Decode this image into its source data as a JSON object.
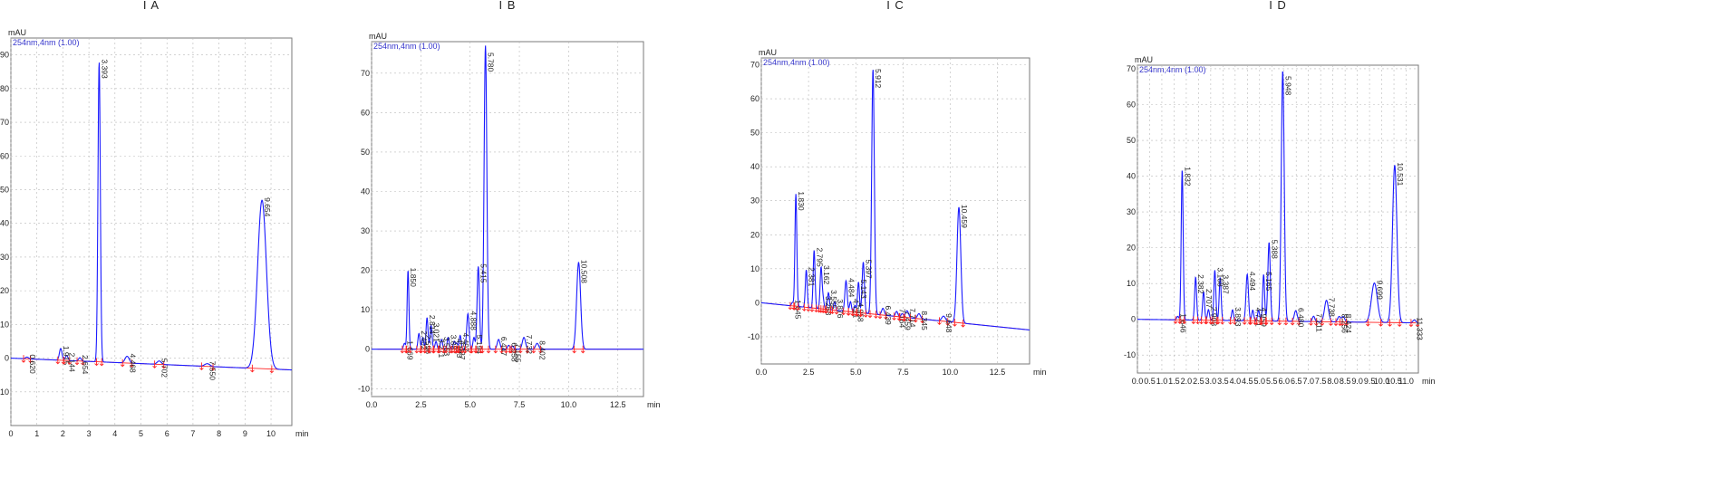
{
  "chart_data": [
    {
      "type": "line",
      "title": "I A",
      "ylabel": "mAU",
      "xlabel": "min",
      "legend": "254nm,4nm (1.00)",
      "xlim": [
        0,
        10.8
      ],
      "ylim": [
        -20,
        95
      ],
      "xticks": [
        0,
        1,
        2,
        3,
        4,
        5,
        6,
        7,
        8,
        9,
        10
      ],
      "yticks": [
        -10,
        0,
        10,
        20,
        30,
        40,
        50,
        60,
        70,
        80,
        90
      ],
      "baseline": {
        "start": 0,
        "end": -3.5
      },
      "peaks": [
        {
          "rt": 0.62,
          "height": 0.5,
          "width": 0.06,
          "label": "0.620"
        },
        {
          "rt": 1.915,
          "height": 3.5,
          "width": 0.05,
          "label": "1.915"
        },
        {
          "rt": 2.144,
          "height": 1.5,
          "width": 0.05,
          "label": "2.144"
        },
        {
          "rt": 2.654,
          "height": 1,
          "width": 0.05,
          "label": "2.654"
        },
        {
          "rt": 3.393,
          "height": 89,
          "width": 0.045,
          "label": "3.393"
        },
        {
          "rt": 4.468,
          "height": 2,
          "width": 0.08,
          "label": "4.468"
        },
        {
          "rt": 5.702,
          "height": 1,
          "width": 0.08,
          "label": "5.702"
        },
        {
          "rt": 7.55,
          "height": 0.8,
          "width": 0.1,
          "label": "7.550"
        },
        {
          "rt": 9.654,
          "height": 50,
          "width": 0.17,
          "label": "9.654"
        }
      ]
    },
    {
      "type": "line",
      "title": "I B",
      "ylabel": "mAU",
      "xlabel": "min",
      "legend": "254nm,4nm (1.00)",
      "xlim": [
        0,
        13.8
      ],
      "ylim": [
        -12,
        78
      ],
      "xticks": [
        0,
        2.5,
        5,
        7.5,
        10,
        12.5
      ],
      "xticklabels": [
        "0.0",
        "2.5",
        "5.0",
        "7.5",
        "10.0",
        "12.5"
      ],
      "yticks": [
        -10,
        0,
        10,
        20,
        30,
        40,
        50,
        60,
        70
      ],
      "baseline": {
        "start": 0,
        "end": 0
      },
      "peaks": [
        {
          "rt": 1.669,
          "height": 1.5,
          "width": 0.05,
          "label": "1.669"
        },
        {
          "rt": 1.85,
          "height": 20,
          "width": 0.045,
          "label": "1.850"
        },
        {
          "rt": 2.402,
          "height": 4,
          "width": 0.05,
          "label": "2.402"
        },
        {
          "rt": 2.596,
          "height": 3,
          "width": 0.05,
          "label": "2.596"
        },
        {
          "rt": 2.814,
          "height": 8,
          "width": 0.05,
          "label": "2.814"
        },
        {
          "rt": 3.021,
          "height": 6,
          "width": 0.05,
          "label": "3.021"
        },
        {
          "rt": 3.271,
          "height": 2,
          "width": 0.05,
          "label": "3.271"
        },
        {
          "rt": 3.553,
          "height": 2.5,
          "width": 0.05,
          "label": "3.553"
        },
        {
          "rt": 3.887,
          "height": 3,
          "width": 0.05,
          "label": "3.887"
        },
        {
          "rt": 4.193,
          "height": 2,
          "width": 0.05,
          "label": "4.193"
        },
        {
          "rt": 4.327,
          "height": 1.5,
          "width": 0.05,
          "label": "4.327"
        },
        {
          "rt": 4.497,
          "height": 3.5,
          "width": 0.05,
          "label": "4.497"
        },
        {
          "rt": 4.888,
          "height": 9,
          "width": 0.06,
          "label": "4.888"
        },
        {
          "rt": 5.194,
          "height": 3,
          "width": 0.05,
          "label": "5.194"
        },
        {
          "rt": 5.415,
          "height": 21,
          "width": 0.06,
          "label": "5.415"
        },
        {
          "rt": 5.78,
          "height": 77,
          "width": 0.07,
          "label": "5.780"
        },
        {
          "rt": 6.447,
          "height": 2.5,
          "width": 0.07,
          "label": "6.447"
        },
        {
          "rt": 6.958,
          "height": 1,
          "width": 0.06,
          "label": "6.958"
        },
        {
          "rt": 7.155,
          "height": 0.8,
          "width": 0.06,
          "label": "7.155"
        },
        {
          "rt": 7.732,
          "height": 3,
          "width": 0.08,
          "label": "7.732"
        },
        {
          "rt": 8.402,
          "height": 1.5,
          "width": 0.08,
          "label": "8.402"
        },
        {
          "rt": 10.508,
          "height": 22,
          "width": 0.1,
          "label": "10.508"
        }
      ]
    },
    {
      "type": "line",
      "title": "I C",
      "ylabel": "mAU",
      "xlabel": "min",
      "legend": "254nm,4nm (1.00)",
      "xlim": [
        0,
        14.2
      ],
      "ylim": [
        -18,
        72
      ],
      "xticks": [
        0,
        2.5,
        5,
        7.5,
        10,
        12.5
      ],
      "xticklabels": [
        "0.0",
        "2.5",
        "5.0",
        "7.5",
        "10.0",
        "12.5"
      ],
      "yticks": [
        -10,
        0,
        10,
        20,
        30,
        40,
        50,
        60,
        70
      ],
      "baseline": {
        "start": 0,
        "end": -8
      },
      "peaks": [
        {
          "rt": 1.645,
          "height": 1,
          "width": 0.05,
          "label": "1.645"
        },
        {
          "rt": 1.83,
          "height": 33,
          "width": 0.05,
          "label": "1.830"
        },
        {
          "rt": 2.381,
          "height": 11,
          "width": 0.05,
          "label": "2.381"
        },
        {
          "rt": 2.795,
          "height": 17,
          "width": 0.05,
          "label": "2.795"
        },
        {
          "rt": 3.162,
          "height": 12,
          "width": 0.05,
          "label": "3.162"
        },
        {
          "rt": 3.268,
          "height": 3,
          "width": 0.05,
          "label": "3.268"
        },
        {
          "rt": 3.555,
          "height": 5,
          "width": 0.05,
          "label": "3.555"
        },
        {
          "rt": 3.876,
          "height": 2.5,
          "width": 0.05,
          "label": "3.876"
        },
        {
          "rt": 4.484,
          "height": 9,
          "width": 0.06,
          "label": "4.484"
        },
        {
          "rt": 4.721,
          "height": 3,
          "width": 0.05,
          "label": "4.721"
        },
        {
          "rt": 4.958,
          "height": 2,
          "width": 0.05,
          "label": "4.958"
        },
        {
          "rt": 5.143,
          "height": 9,
          "width": 0.05,
          "label": "5.143"
        },
        {
          "rt": 5.397,
          "height": 15,
          "width": 0.06,
          "label": "5.397"
        },
        {
          "rt": 5.912,
          "height": 72,
          "width": 0.07,
          "label": "5.912"
        },
        {
          "rt": 6.439,
          "height": 2,
          "width": 0.07,
          "label": "6.439"
        },
        {
          "rt": 7.164,
          "height": 1.5,
          "width": 0.06,
          "label": "7.164"
        },
        {
          "rt": 7.459,
          "height": 1,
          "width": 0.06,
          "label": "7.459"
        },
        {
          "rt": 7.714,
          "height": 2,
          "width": 0.08,
          "label": "7.714"
        },
        {
          "rt": 8.345,
          "height": 1.5,
          "width": 0.08,
          "label": "8.345"
        },
        {
          "rt": 9.648,
          "height": 1.5,
          "width": 0.1,
          "label": "9.648"
        },
        {
          "rt": 10.459,
          "height": 34,
          "width": 0.1,
          "label": "10.459"
        }
      ]
    },
    {
      "type": "line",
      "title": "I D",
      "ylabel": "mAU",
      "xlabel": "min",
      "legend": "254nm,4nm (1.00)",
      "xlim": [
        0,
        11.5
      ],
      "ylim": [
        -15,
        71
      ],
      "xticks": [
        0,
        0.5,
        1,
        1.5,
        2,
        2.5,
        3,
        3.5,
        4,
        4.5,
        5,
        5.5,
        6,
        6.5,
        7,
        7.5,
        8,
        8.5,
        9,
        9.5,
        10,
        10.5,
        11
      ],
      "xticklabels": [
        "0.0",
        "0.5",
        "1.0",
        "1.5",
        "2.0",
        "2.5",
        "3.0",
        "3.5",
        "4.0",
        "4.5",
        "5.0",
        "5.5",
        "6.0",
        "6.5",
        "7.0",
        "7.5",
        "8.0",
        "8.5",
        "9.0",
        "9.5",
        "10.0",
        "10.5",
        "11.0"
      ],
      "yticks": [
        -10,
        0,
        10,
        20,
        30,
        40,
        50,
        60,
        70
      ],
      "baseline": {
        "start": 0,
        "end": -1
      },
      "peaks": [
        {
          "rt": 1.646,
          "height": 1,
          "width": 0.04,
          "label": "1.646"
        },
        {
          "rt": 1.832,
          "height": 42,
          "width": 0.04,
          "label": "1.832"
        },
        {
          "rt": 2.382,
          "height": 12,
          "width": 0.04,
          "label": "2.382"
        },
        {
          "rt": 2.707,
          "height": 8,
          "width": 0.04,
          "label": "2.707"
        },
        {
          "rt": 2.908,
          "height": 3,
          "width": 0.04,
          "label": "2.908"
        },
        {
          "rt": 3.168,
          "height": 14,
          "width": 0.04,
          "label": "3.168"
        },
        {
          "rt": 3.387,
          "height": 12,
          "width": 0.04,
          "label": "3.387"
        },
        {
          "rt": 3.893,
          "height": 3,
          "width": 0.04,
          "label": "3.893"
        },
        {
          "rt": 4.494,
          "height": 13,
          "width": 0.05,
          "label": "4.494"
        },
        {
          "rt": 4.721,
          "height": 3,
          "width": 0.04,
          "label": "4.721"
        },
        {
          "rt": 4.959,
          "height": 3,
          "width": 0.04,
          "label": "4.959"
        },
        {
          "rt": 5.165,
          "height": 13,
          "width": 0.04,
          "label": "5.165"
        },
        {
          "rt": 5.388,
          "height": 22,
          "width": 0.05,
          "label": "5.388"
        },
        {
          "rt": 5.948,
          "height": 70,
          "width": 0.06,
          "label": "5.948"
        },
        {
          "rt": 6.48,
          "height": 3,
          "width": 0.06,
          "label": "6.480"
        },
        {
          "rt": 7.211,
          "height": 1.5,
          "width": 0.05,
          "label": "7.211"
        },
        {
          "rt": 7.738,
          "height": 6,
          "width": 0.08,
          "label": "7.738"
        },
        {
          "rt": 8.256,
          "height": 1.5,
          "width": 0.06,
          "label": "8.256"
        },
        {
          "rt": 8.424,
          "height": 1.5,
          "width": 0.06,
          "label": "8.424"
        },
        {
          "rt": 9.699,
          "height": 11,
          "width": 0.12,
          "label": "9.699"
        },
        {
          "rt": 10.531,
          "height": 44,
          "width": 0.09,
          "label": "10.531"
        },
        {
          "rt": 11.333,
          "height": 0.8,
          "width": 0.06,
          "label": "11.333"
        }
      ]
    }
  ]
}
